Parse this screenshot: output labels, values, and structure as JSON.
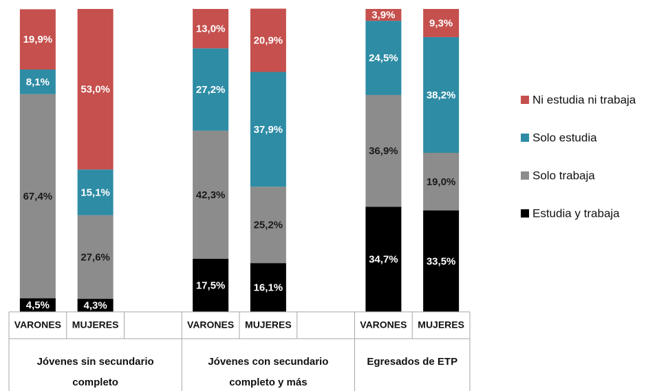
{
  "chart_data": {
    "type": "stacked_bar",
    "ylim": [
      0,
      100
    ],
    "groups": [
      {
        "name": "Jóvenes sin secundario completo",
        "categories": [
          "VARONES",
          "MUJERES"
        ]
      },
      {
        "name": "Jóvenes con secundario completo y más",
        "categories": [
          "VARONES",
          "MUJERES"
        ]
      },
      {
        "name": "Egresados de ETP",
        "categories": [
          "VARONES",
          "MUJERES"
        ]
      }
    ],
    "series": [
      {
        "name": "Estudia y trabaja",
        "color": "#000000",
        "label_color": "#ffffff",
        "values": [
          4.5,
          4.3,
          17.5,
          16.1,
          34.7,
          33.5
        ],
        "value_labels": [
          "4,5%",
          "4,3%",
          "17,5%",
          "16,1%",
          "34,7%",
          "33,5%"
        ]
      },
      {
        "name": "Solo trabaja",
        "color": "#8c8c8c",
        "label_color": "#1a1a1a",
        "values": [
          67.4,
          27.6,
          42.3,
          25.2,
          36.9,
          19.0
        ],
        "value_labels": [
          "67,4%",
          "27,6%",
          "42,3%",
          "25,2%",
          "36,9%",
          "19,0%"
        ]
      },
      {
        "name": "Solo estudia",
        "color": "#2e8ca5",
        "label_color": "#ffffff",
        "values": [
          8.1,
          15.1,
          27.2,
          37.9,
          24.5,
          38.2
        ],
        "value_labels": [
          "8,1%",
          "15,1%",
          "27,2%",
          "37,9%",
          "24,5%",
          "38,2%"
        ]
      },
      {
        "name": "Ni estudia ni trabaja",
        "color": "#c5504d",
        "label_color": "#ffffff",
        "values": [
          19.9,
          53.0,
          13.0,
          20.9,
          3.9,
          9.3
        ],
        "value_labels": [
          "19,9%",
          "53,0%",
          "13,0%",
          "20,9%",
          "3,9%",
          "9,3%"
        ]
      }
    ]
  }
}
